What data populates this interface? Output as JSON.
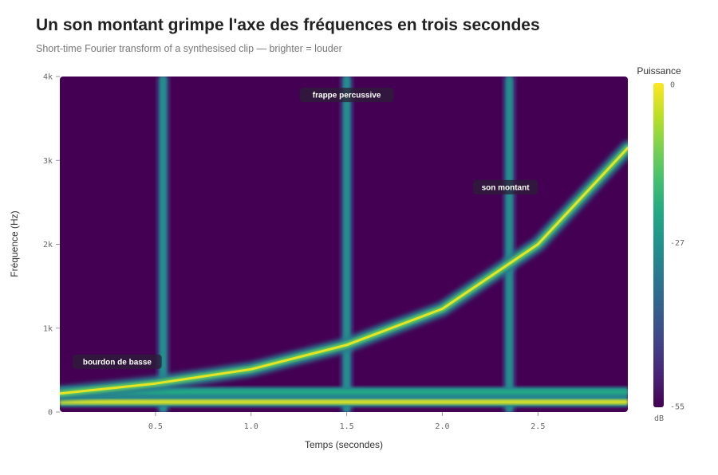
{
  "title": "Un son montant grimpe l'axe des fréquences en trois secondes",
  "subtitle": "Short-time Fourier transform of a synthesised clip — brighter = louder",
  "chart_data": {
    "type": "heatmap",
    "xlabel": "Temps (secondes)",
    "ylabel": "Fréquence (Hz)",
    "xlim": [
      0,
      2.97
    ],
    "ylim": [
      0,
      4000
    ],
    "x_ticks": [
      {
        "value": 0.5,
        "label": "0.5"
      },
      {
        "value": 1.0,
        "label": "1.0"
      },
      {
        "value": 1.5,
        "label": "1.5"
      },
      {
        "value": 2.0,
        "label": "2.0"
      },
      {
        "value": 2.5,
        "label": "2.5"
      }
    ],
    "y_ticks": [
      {
        "value": 0,
        "label": "0"
      },
      {
        "value": 1000,
        "label": "1k"
      },
      {
        "value": 2000,
        "label": "2k"
      },
      {
        "value": 3000,
        "label": "3k"
      },
      {
        "value": 4000,
        "label": "4k"
      }
    ],
    "colorbar": {
      "title": "Puissance",
      "unit": "dB",
      "min": -55,
      "max": 0,
      "ticks": [
        {
          "value": 0,
          "label": "0"
        },
        {
          "value": -27,
          "label": "-27"
        },
        {
          "value": -55,
          "label": "-55"
        }
      ],
      "colormap": "viridis"
    },
    "background_db": -55,
    "components": {
      "drone": {
        "freq_hz": [
          120,
          240
        ],
        "db": [
          -3,
          -22
        ]
      },
      "chirp": {
        "start": [
          0,
          220
        ],
        "points": [
          [
            0.5,
            340
          ],
          [
            1.0,
            510
          ],
          [
            1.5,
            800
          ],
          [
            2.0,
            1230
          ],
          [
            2.5,
            2000
          ],
          [
            2.97,
            3150
          ]
        ],
        "db": -2
      },
      "percussive_hits": {
        "times_s": [
          0.54,
          1.5,
          2.35
        ],
        "db": -28
      }
    },
    "annotations": [
      {
        "text": "bourdon de basse",
        "x": 0.3,
        "y": 600
      },
      {
        "text": "frappe percussive",
        "x": 1.5,
        "y": 3780
      },
      {
        "text": "son montant",
        "x": 2.33,
        "y": 2680
      }
    ]
  }
}
